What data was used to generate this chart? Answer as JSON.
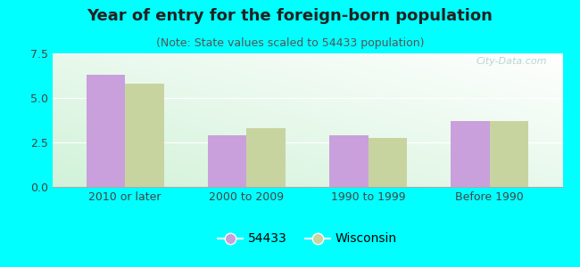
{
  "title": "Year of entry for the foreign-born population",
  "subtitle": "(Note: State values scaled to 54433 population)",
  "categories": [
    "2010 or later",
    "2000 to 2009",
    "1990 to 1999",
    "Before 1990"
  ],
  "values_54433": [
    6.3,
    2.9,
    2.9,
    3.7
  ],
  "values_wisconsin": [
    5.8,
    3.3,
    2.75,
    3.7
  ],
  "color_54433": "#c9a0dc",
  "color_wisconsin": "#c8d4a0",
  "ylim": [
    0,
    7.5
  ],
  "yticks": [
    0,
    2.5,
    5,
    7.5
  ],
  "legend_54433": "54433",
  "legend_wisconsin": "Wisconsin",
  "background_color": "#00ffff",
  "bar_width": 0.32,
  "title_fontsize": 13,
  "subtitle_fontsize": 9,
  "tick_fontsize": 9,
  "legend_fontsize": 10,
  "watermark": "City-Data.com"
}
